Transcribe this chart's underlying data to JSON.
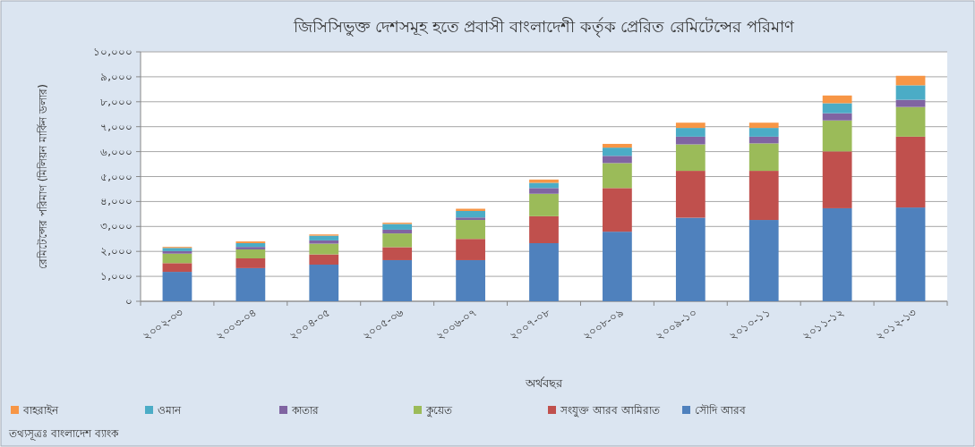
{
  "chart_data": {
    "type": "bar",
    "stacked": true,
    "title": "জিসিসিভুক্ত দেশসমূহ হতে প্রবাসী বাংলাদেশী কর্তৃক প্রেরিত রেমিটেন্সের পরিমাণ",
    "xlabel": "অর্থবছর",
    "ylabel": "রেমিটেন্সের পরিমাণ (মিলিয়ন মার্কিন ডলার)",
    "categories": [
      "২০০২-০৩",
      "২০০৩-০৪",
      "২০০৪-০৫",
      "২০০৫-০৬",
      "২০০৬-০৭",
      "২০০৭-০৮",
      "২০০৮-০৯",
      "২০০৯-১০",
      "২০১০-১১",
      "২০১১-১২",
      "২০১২-১৩"
    ],
    "series": [
      {
        "name": "সৌদি আরব",
        "color": "#4f81bd",
        "values": [
          1180,
          1330,
          1470,
          1650,
          1650,
          2330,
          2790,
          3350,
          3260,
          3730,
          3760
        ]
      },
      {
        "name": "সংযুক্ত আরব আমিরাত",
        "color": "#c0504d",
        "values": [
          350,
          390,
          410,
          520,
          850,
          1080,
          1750,
          1880,
          1970,
          2280,
          2840
        ]
      },
      {
        "name": "কুয়েত",
        "color": "#9bbb59",
        "values": [
          380,
          360,
          430,
          550,
          760,
          900,
          1000,
          1060,
          1100,
          1240,
          1190
        ]
      },
      {
        "name": "কাতার",
        "color": "#8064a2",
        "values": [
          100,
          100,
          130,
          150,
          100,
          230,
          290,
          310,
          270,
          290,
          290
        ]
      },
      {
        "name": "ওমান",
        "color": "#4bacc6",
        "values": [
          130,
          150,
          190,
          230,
          260,
          210,
          330,
          350,
          350,
          400,
          580
        ]
      },
      {
        "name": "বাহরাইন",
        "color": "#f79646",
        "values": [
          40,
          70,
          50,
          50,
          90,
          130,
          150,
          210,
          210,
          310,
          380
        ]
      }
    ],
    "ylim": [
      0,
      10000
    ],
    "yticks": [
      {
        "value": 0,
        "label": "০"
      },
      {
        "value": 1000,
        "label": "১,০০০"
      },
      {
        "value": 2000,
        "label": "২,০০০"
      },
      {
        "value": 3000,
        "label": "৩,০০০"
      },
      {
        "value": 4000,
        "label": "৪,০০০"
      },
      {
        "value": 5000,
        "label": "৫,০০০"
      },
      {
        "value": 6000,
        "label": "৬,০০০"
      },
      {
        "value": 7000,
        "label": "৭,০০০"
      },
      {
        "value": 8000,
        "label": "৮,০০০"
      },
      {
        "value": 9000,
        "label": "৯,০০০"
      },
      {
        "value": 10000,
        "label": "১০,০০০"
      }
    ],
    "grid": "y",
    "legend": "bottom",
    "annotations": [
      "তথ্যসূত্রঃ বাংলাদেশ ব্যাংক"
    ]
  }
}
